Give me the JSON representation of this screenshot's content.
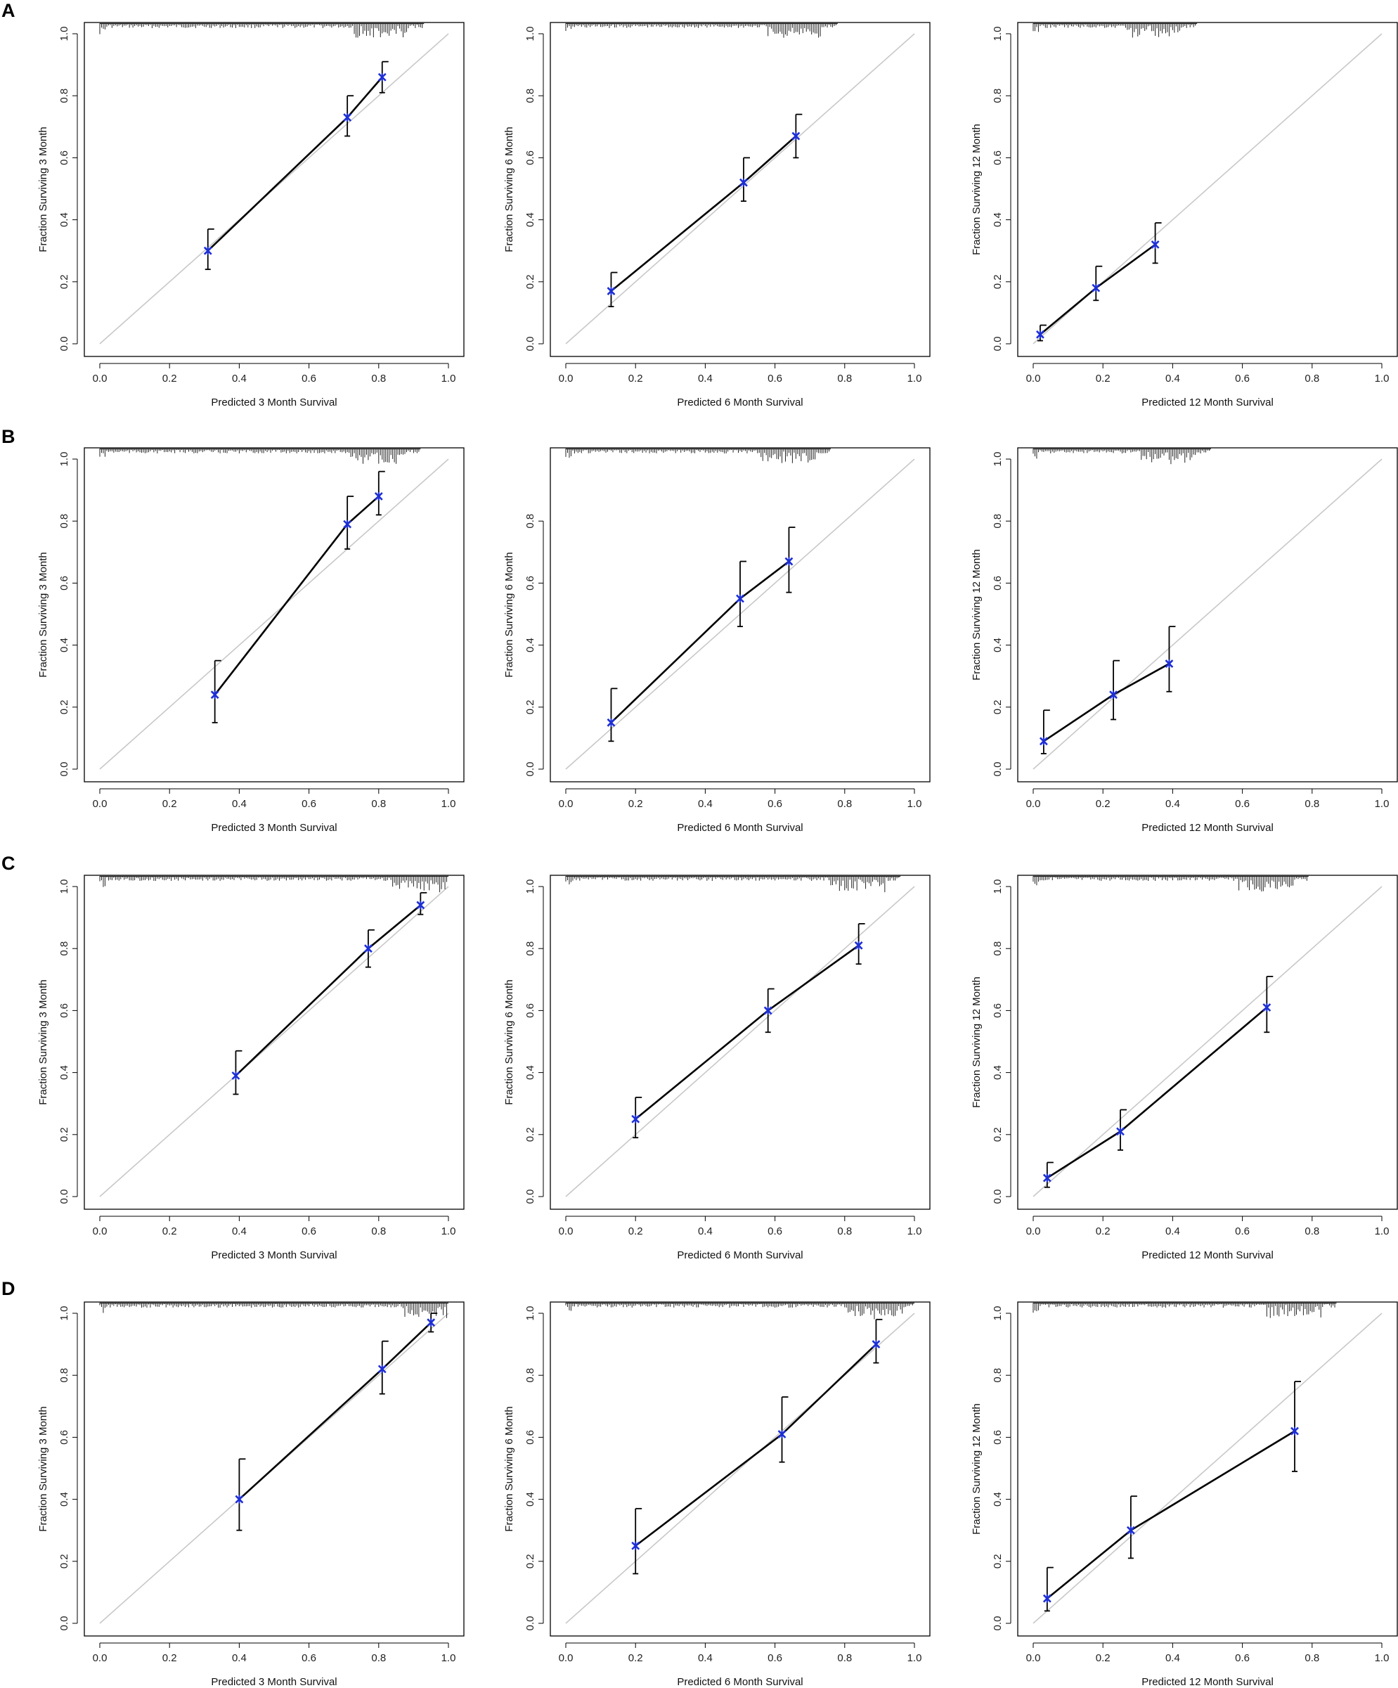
{
  "figure": {
    "panels": [
      "A",
      "B",
      "C",
      "D"
    ]
  },
  "colors": {
    "point": "#1d2fd6",
    "line": "#000000",
    "reference_line": "#c8c8c8",
    "rug": "#222222",
    "frame": "#000000"
  },
  "chart_data": [
    {
      "panel": "A",
      "type": "scatter",
      "xlabel": "Predicted 3 Month Survival",
      "ylabel": "Fraction Surviving 3 Month",
      "xlim": [
        0,
        1
      ],
      "ylim": [
        0,
        1
      ],
      "xticks": [
        "0.0",
        "0.2",
        "0.4",
        "0.6",
        "0.8",
        "1.0"
      ],
      "yticks": [
        "0.0",
        "0.2",
        "0.4",
        "0.6",
        "0.8",
        "1.0"
      ],
      "reference_line": "diagonal",
      "rug": "top",
      "points": [
        {
          "x": 0.31,
          "y": 0.3,
          "lo": 0.24,
          "hi": 0.37
        },
        {
          "x": 0.71,
          "y": 0.73,
          "lo": 0.67,
          "hi": 0.8
        },
        {
          "x": 0.81,
          "y": 0.86,
          "lo": 0.81,
          "hi": 0.91
        }
      ]
    },
    {
      "panel": "A",
      "type": "scatter",
      "xlabel": "Predicted 6 Month Survival",
      "ylabel": "Fraction Surviving 6 Month",
      "xlim": [
        0,
        1
      ],
      "ylim": [
        0,
        1
      ],
      "xticks": [
        "0.0",
        "0.2",
        "0.4",
        "0.6",
        "0.8",
        "1.0"
      ],
      "yticks": [
        "0.0",
        "0.2",
        "0.4",
        "0.6",
        "0.8",
        "1.0"
      ],
      "reference_line": "diagonal",
      "rug": "top",
      "points": [
        {
          "x": 0.13,
          "y": 0.17,
          "lo": 0.12,
          "hi": 0.23
        },
        {
          "x": 0.51,
          "y": 0.52,
          "lo": 0.46,
          "hi": 0.6
        },
        {
          "x": 0.66,
          "y": 0.67,
          "lo": 0.6,
          "hi": 0.74
        }
      ]
    },
    {
      "panel": "A",
      "type": "scatter",
      "xlabel": "Predicted 12 Month Survival",
      "ylabel": "Fraction Surviving 12 Month",
      "xlim": [
        0,
        1
      ],
      "ylim": [
        0,
        1
      ],
      "xticks": [
        "0.0",
        "0.2",
        "0.4",
        "0.6",
        "0.8",
        "1.0"
      ],
      "yticks": [
        "0.0",
        "0.2",
        "0.4",
        "0.6",
        "0.8",
        "1.0"
      ],
      "reference_line": "diagonal",
      "rug": "top",
      "points": [
        {
          "x": 0.02,
          "y": 0.03,
          "lo": 0.01,
          "hi": 0.06
        },
        {
          "x": 0.18,
          "y": 0.18,
          "lo": 0.14,
          "hi": 0.25
        },
        {
          "x": 0.35,
          "y": 0.32,
          "lo": 0.26,
          "hi": 0.39
        }
      ]
    },
    {
      "panel": "B",
      "type": "scatter",
      "xlabel": "Predicted 3 Month Survival",
      "ylabel": "Fraction Surviving 3 Month",
      "xlim": [
        0,
        1
      ],
      "ylim": [
        0,
        1
      ],
      "xticks": [
        "0.0",
        "0.2",
        "0.4",
        "0.6",
        "0.8",
        "1.0"
      ],
      "yticks": [
        "0.0",
        "0.2",
        "0.4",
        "0.6",
        "0.8",
        "1.0"
      ],
      "reference_line": "diagonal",
      "rug": "top",
      "points": [
        {
          "x": 0.33,
          "y": 0.24,
          "lo": 0.15,
          "hi": 0.35
        },
        {
          "x": 0.71,
          "y": 0.79,
          "lo": 0.71,
          "hi": 0.88
        },
        {
          "x": 0.8,
          "y": 0.88,
          "lo": 0.82,
          "hi": 0.96
        }
      ]
    },
    {
      "panel": "B",
      "type": "scatter",
      "xlabel": "Predicted 6 Month Survival",
      "ylabel": "Fraction Surviving 6 Month",
      "xlim": [
        0,
        1
      ],
      "ylim": [
        0,
        1
      ],
      "xticks": [
        "0.0",
        "0.2",
        "0.4",
        "0.6",
        "0.8",
        "1.0"
      ],
      "yticks": [
        "0.0",
        "0.2",
        "0.4",
        "0.6",
        "0.8"
      ],
      "reference_line": "diagonal",
      "rug": "top",
      "points": [
        {
          "x": 0.13,
          "y": 0.15,
          "lo": 0.09,
          "hi": 0.26
        },
        {
          "x": 0.5,
          "y": 0.55,
          "lo": 0.46,
          "hi": 0.67
        },
        {
          "x": 0.64,
          "y": 0.67,
          "lo": 0.57,
          "hi": 0.78
        }
      ]
    },
    {
      "panel": "B",
      "type": "scatter",
      "xlabel": "Predicted 12 Month Survival",
      "ylabel": "Fraction Surviving 12 Month",
      "xlim": [
        0,
        1
      ],
      "ylim": [
        0,
        1
      ],
      "xticks": [
        "0.0",
        "0.2",
        "0.4",
        "0.6",
        "0.8",
        "1.0"
      ],
      "yticks": [
        "0.0",
        "0.2",
        "0.4",
        "0.6",
        "0.8",
        "1.0"
      ],
      "reference_line": "diagonal",
      "rug": "top",
      "points": [
        {
          "x": 0.03,
          "y": 0.09,
          "lo": 0.05,
          "hi": 0.19
        },
        {
          "x": 0.23,
          "y": 0.24,
          "lo": 0.16,
          "hi": 0.35
        },
        {
          "x": 0.39,
          "y": 0.34,
          "lo": 0.25,
          "hi": 0.46
        }
      ]
    },
    {
      "panel": "C",
      "type": "scatter",
      "xlabel": "Predicted 3 Month Survival",
      "ylabel": "Fraction Surviving 3 Month",
      "xlim": [
        0,
        1
      ],
      "ylim": [
        0,
        1
      ],
      "xticks": [
        "0.0",
        "0.2",
        "0.4",
        "0.6",
        "0.8",
        "1.0"
      ],
      "yticks": [
        "0.0",
        "0.2",
        "0.4",
        "0.6",
        "0.8",
        "1.0"
      ],
      "reference_line": "diagonal",
      "rug": "top",
      "points": [
        {
          "x": 0.39,
          "y": 0.39,
          "lo": 0.33,
          "hi": 0.47
        },
        {
          "x": 0.77,
          "y": 0.8,
          "lo": 0.74,
          "hi": 0.86
        },
        {
          "x": 0.92,
          "y": 0.94,
          "lo": 0.91,
          "hi": 0.98
        }
      ]
    },
    {
      "panel": "C",
      "type": "scatter",
      "xlabel": "Predicted 6 Month Survival",
      "ylabel": "Fraction Surviving 6 Month",
      "xlim": [
        0,
        1
      ],
      "ylim": [
        0,
        1
      ],
      "xticks": [
        "0.0",
        "0.2",
        "0.4",
        "0.6",
        "0.8",
        "1.0"
      ],
      "yticks": [
        "0.0",
        "0.2",
        "0.4",
        "0.6",
        "0.8",
        "1.0"
      ],
      "reference_line": "diagonal",
      "rug": "top",
      "points": [
        {
          "x": 0.2,
          "y": 0.25,
          "lo": 0.19,
          "hi": 0.32
        },
        {
          "x": 0.58,
          "y": 0.6,
          "lo": 0.53,
          "hi": 0.67
        },
        {
          "x": 0.84,
          "y": 0.81,
          "lo": 0.75,
          "hi": 0.88
        }
      ]
    },
    {
      "panel": "C",
      "type": "scatter",
      "xlabel": "Predicted 12 Month Survival",
      "ylabel": "Fraction Surviving 12 Month",
      "xlim": [
        0,
        1
      ],
      "ylim": [
        0,
        1
      ],
      "xticks": [
        "0.0",
        "0.2",
        "0.4",
        "0.6",
        "0.8",
        "1.0"
      ],
      "yticks": [
        "0.0",
        "0.2",
        "0.4",
        "0.6",
        "0.8",
        "1.0"
      ],
      "reference_line": "diagonal",
      "rug": "top",
      "points": [
        {
          "x": 0.04,
          "y": 0.06,
          "lo": 0.03,
          "hi": 0.11
        },
        {
          "x": 0.25,
          "y": 0.21,
          "lo": 0.15,
          "hi": 0.28
        },
        {
          "x": 0.67,
          "y": 0.61,
          "lo": 0.53,
          "hi": 0.71
        }
      ]
    },
    {
      "panel": "D",
      "type": "scatter",
      "xlabel": "Predicted 3 Month Survival",
      "ylabel": "Fraction Surviving 3 Month",
      "xlim": [
        0,
        1
      ],
      "ylim": [
        0,
        1
      ],
      "xticks": [
        "0.0",
        "0.2",
        "0.4",
        "0.6",
        "0.8",
        "1.0"
      ],
      "yticks": [
        "0.0",
        "0.2",
        "0.4",
        "0.6",
        "0.8",
        "1.0"
      ],
      "reference_line": "diagonal",
      "rug": "top",
      "points": [
        {
          "x": 0.4,
          "y": 0.4,
          "lo": 0.3,
          "hi": 0.53
        },
        {
          "x": 0.81,
          "y": 0.82,
          "lo": 0.74,
          "hi": 0.91
        },
        {
          "x": 0.95,
          "y": 0.97,
          "lo": 0.94,
          "hi": 1.0
        }
      ]
    },
    {
      "panel": "D",
      "type": "scatter",
      "xlabel": "Predicted 6 Month Survival",
      "ylabel": "Fraction Surviving 6 Month",
      "xlim": [
        0,
        1
      ],
      "ylim": [
        0,
        1
      ],
      "xticks": [
        "0.0",
        "0.2",
        "0.4",
        "0.6",
        "0.8",
        "1.0"
      ],
      "yticks": [
        "0.0",
        "0.2",
        "0.4",
        "0.6",
        "0.8",
        "1.0"
      ],
      "reference_line": "diagonal",
      "rug": "top",
      "points": [
        {
          "x": 0.2,
          "y": 0.25,
          "lo": 0.16,
          "hi": 0.37
        },
        {
          "x": 0.62,
          "y": 0.61,
          "lo": 0.52,
          "hi": 0.73
        },
        {
          "x": 0.89,
          "y": 0.9,
          "lo": 0.84,
          "hi": 0.98
        }
      ]
    },
    {
      "panel": "D",
      "type": "scatter",
      "xlabel": "Predicted 12 Month Survival",
      "ylabel": "Fraction Surviving 12 Month",
      "xlim": [
        0,
        1
      ],
      "ylim": [
        0,
        1
      ],
      "xticks": [
        "0.0",
        "0.2",
        "0.4",
        "0.6",
        "0.8",
        "1.0"
      ],
      "yticks": [
        "0.0",
        "0.2",
        "0.4",
        "0.6",
        "0.8",
        "1.0"
      ],
      "reference_line": "diagonal",
      "rug": "top",
      "points": [
        {
          "x": 0.04,
          "y": 0.08,
          "lo": 0.04,
          "hi": 0.18
        },
        {
          "x": 0.28,
          "y": 0.3,
          "lo": 0.21,
          "hi": 0.41
        },
        {
          "x": 0.75,
          "y": 0.62,
          "lo": 0.49,
          "hi": 0.78
        }
      ]
    }
  ]
}
